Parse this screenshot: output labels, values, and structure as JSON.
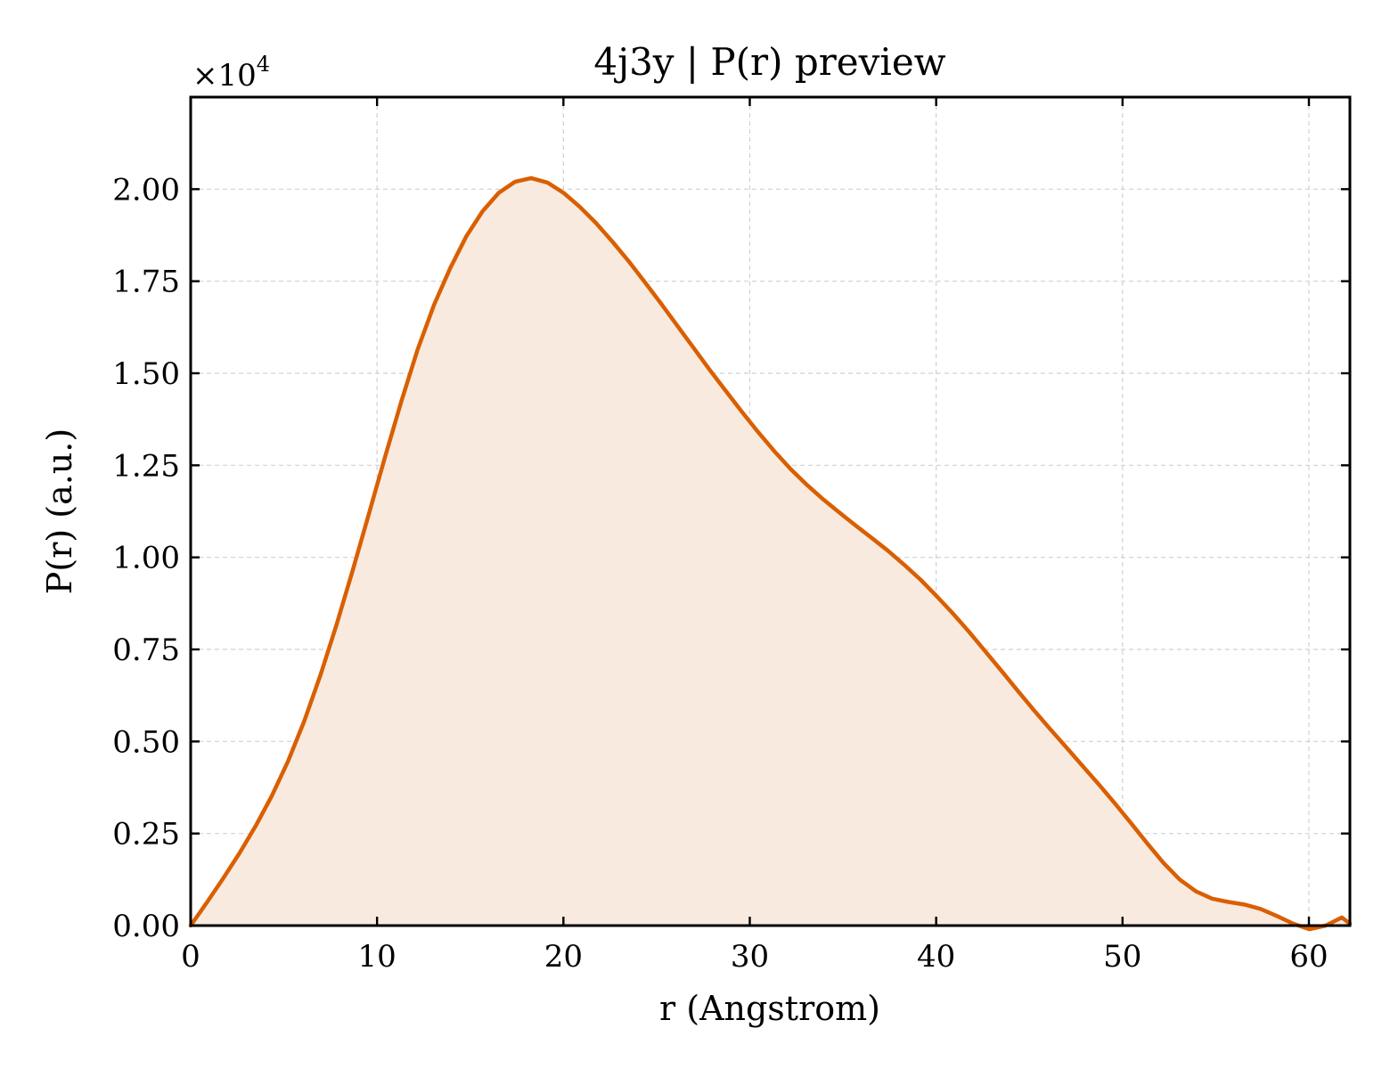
{
  "chart_data": {
    "type": "area",
    "title": "4j3y | P(r) preview",
    "xlabel": "r (Angstrom)",
    "ylabel": "P(r) (a.u.)",
    "y_multiplier_label": "×10",
    "y_multiplier_exponent": "4",
    "xlim": [
      0,
      62.2
    ],
    "ylim": [
      0,
      2.25
    ],
    "x_ticks": [
      0,
      10,
      20,
      30,
      40,
      50,
      60
    ],
    "x_tick_labels": [
      "0",
      "10",
      "20",
      "30",
      "40",
      "50",
      "60"
    ],
    "y_ticks": [
      0,
      0.25,
      0.5,
      0.75,
      1.0,
      1.25,
      1.5,
      1.75,
      2.0
    ],
    "y_tick_labels": [
      "0.00",
      "0.25",
      "0.50",
      "0.75",
      "1.00",
      "1.25",
      "1.50",
      "1.75",
      "2.00"
    ],
    "grid": true,
    "colors": {
      "line": "#d95f02",
      "fill": "#f9eadf"
    },
    "series": [
      {
        "x": [
          0,
          0.87,
          1.74,
          2.61,
          3.48,
          4.35,
          5.22,
          6.09,
          6.96,
          7.83,
          8.7,
          9.57,
          10.44,
          11.31,
          12.18,
          13.05,
          13.92,
          14.79,
          15.66,
          16.53,
          17.4,
          18.27,
          19.14,
          20.01,
          20.88,
          21.75,
          22.62,
          23.49,
          24.36,
          25.23,
          26.1,
          26.97,
          27.84,
          28.71,
          29.58,
          30.45,
          31.32,
          32.19,
          33.06,
          33.93,
          34.8,
          35.67,
          36.54,
          37.41,
          38.28,
          39.15,
          40.02,
          40.89,
          41.76,
          42.63,
          43.5,
          44.37,
          45.24,
          46.11,
          46.98,
          47.85,
          48.72,
          49.59,
          50.46,
          51.33,
          52.2,
          53.07,
          53.94,
          54.81,
          55.68,
          56.55,
          57.42,
          58.29,
          59.16,
          60.03,
          60.9,
          61.77,
          62.2
        ],
        "values": [
          0.0,
          0.063,
          0.128,
          0.196,
          0.27,
          0.352,
          0.446,
          0.555,
          0.68,
          0.818,
          0.966,
          1.12,
          1.275,
          1.425,
          1.565,
          1.685,
          1.785,
          1.872,
          1.94,
          1.99,
          2.02,
          2.03,
          2.018,
          1.99,
          1.952,
          1.908,
          1.858,
          1.805,
          1.748,
          1.69,
          1.63,
          1.57,
          1.51,
          1.452,
          1.395,
          1.34,
          1.288,
          1.24,
          1.197,
          1.158,
          1.122,
          1.087,
          1.053,
          1.018,
          0.98,
          0.94,
          0.895,
          0.848,
          0.798,
          0.745,
          0.692,
          0.638,
          0.585,
          0.534,
          0.484,
          0.434,
          0.384,
          0.332,
          0.278,
          0.223,
          0.17,
          0.125,
          0.093,
          0.073,
          0.064,
          0.057,
          0.045,
          0.026,
          0.005,
          -0.01,
          0.0,
          0.022,
          0.005
        ]
      }
    ]
  }
}
